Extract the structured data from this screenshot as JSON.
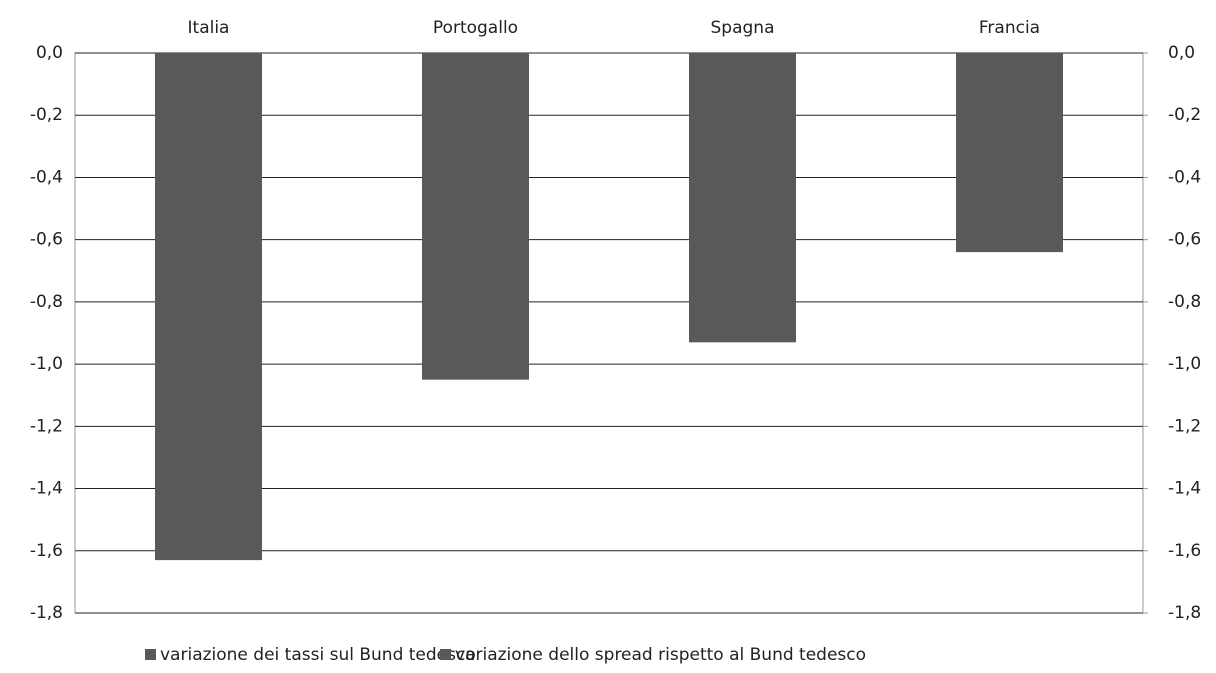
{
  "chart_data": {
    "type": "bar",
    "categories": [
      "Italia",
      "Portogallo",
      "Spagna",
      "Francia"
    ],
    "series": [
      {
        "name": "variazione dei tassi sul Bund tedesco",
        "color": "#595959",
        "values": [
          -1.63,
          -1.05,
          -0.93,
          -0.64
        ]
      },
      {
        "name": "variazione dello spread rispetto al Bund tedesco",
        "color": "#595959",
        "values": [
          -1.63,
          -1.05,
          -0.93,
          -0.64
        ]
      }
    ],
    "ylim": [
      -1.8,
      0
    ],
    "yticks": [
      {
        "value": 0,
        "label": "0,0"
      },
      {
        "value": -0.2,
        "label": "-0,2"
      },
      {
        "value": -0.4,
        "label": "-0,4"
      },
      {
        "value": -0.6,
        "label": "-0,6"
      },
      {
        "value": -0.8,
        "label": "-0,8"
      },
      {
        "value": -1.0,
        "label": "-1,0"
      },
      {
        "value": -1.2,
        "label": "-1,2"
      },
      {
        "value": -1.4,
        "label": "-1,4"
      },
      {
        "value": -1.6,
        "label": "-1,6"
      },
      {
        "value": -1.8,
        "label": "-1,8"
      }
    ],
    "y2lim": [
      -1.8,
      0
    ],
    "y2ticks": [
      {
        "value": 0,
        "label": "0,0"
      },
      {
        "value": -0.2,
        "label": "-0,2"
      },
      {
        "value": -0.4,
        "label": "-0,4"
      },
      {
        "value": -0.6,
        "label": "-0,6"
      },
      {
        "value": -0.8,
        "label": "-0,8"
      },
      {
        "value": -1.0,
        "label": "-1,0"
      },
      {
        "value": -1.2,
        "label": "-1,2"
      },
      {
        "value": -1.4,
        "label": "-1,4"
      },
      {
        "value": -1.6,
        "label": "-1,6"
      },
      {
        "value": -1.8,
        "label": "-1,8"
      }
    ],
    "grid": true,
    "legend": "bottom"
  }
}
